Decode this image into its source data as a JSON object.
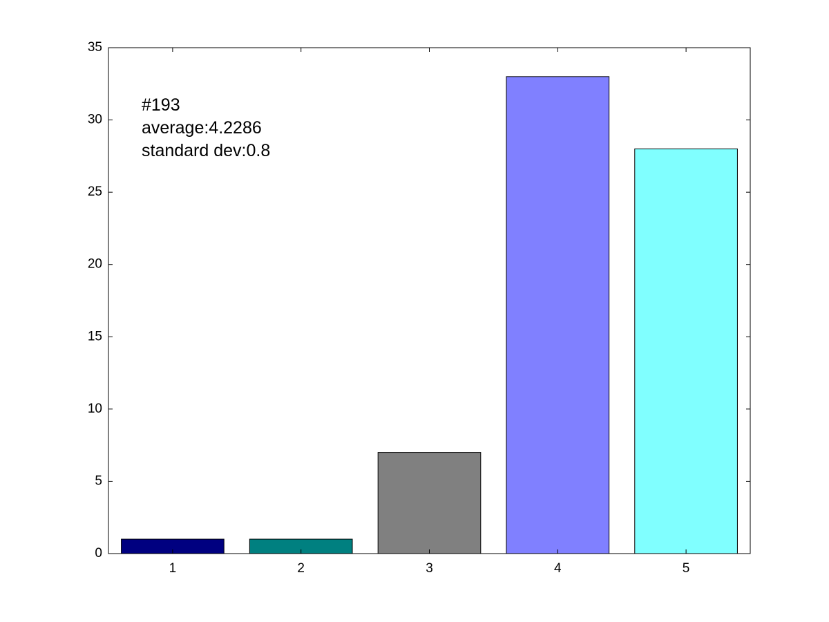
{
  "chart_data": {
    "type": "bar",
    "title": "",
    "xlabel": "",
    "ylabel": "",
    "categories": [
      "1",
      "2",
      "3",
      "4",
      "5"
    ],
    "values": [
      1,
      1,
      7,
      33,
      28
    ],
    "bar_colors": [
      "#000080",
      "#008080",
      "#808080",
      "#8080ff",
      "#80ffff"
    ],
    "ylim": [
      0,
      35
    ],
    "yticks": [
      0,
      5,
      10,
      15,
      20,
      25,
      30,
      35
    ],
    "xlim": [
      0.5,
      5.5
    ],
    "grid": false,
    "legend": "none",
    "annotation": {
      "lines": [
        "#193",
        "average:4.2286",
        "standard dev:0.8"
      ]
    }
  }
}
